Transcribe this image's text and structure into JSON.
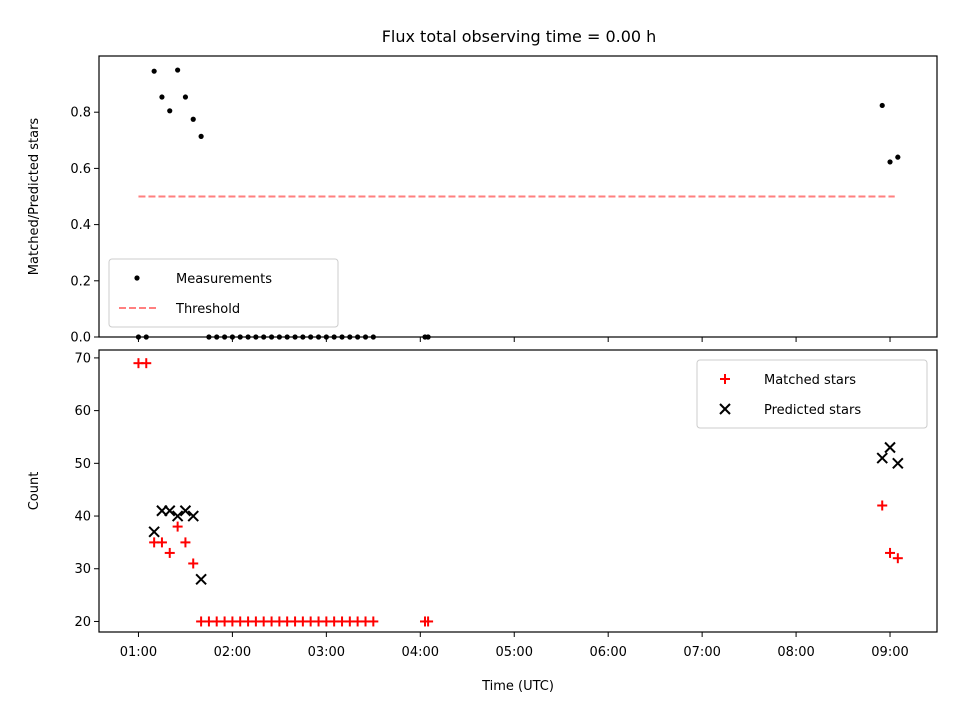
{
  "chart_data": [
    {
      "type": "scatter",
      "title": "Flux total observing time = 0.00 h",
      "xlabel": "",
      "ylabel": "Matched/Predicted stars",
      "xlim": [
        0.58,
        9.5
      ],
      "ylim": [
        0.0,
        1.0
      ],
      "yticks": [
        0.0,
        0.2,
        0.4,
        0.6,
        0.8
      ],
      "ytick_labels": [
        "0.0",
        "0.2",
        "0.4",
        "0.6",
        "0.8"
      ],
      "grid": false,
      "legend_position": "lower-left",
      "series": [
        {
          "name": "Measurements",
          "marker": "dot",
          "color": "#000000",
          "x": [
            1.0,
            1.083,
            1.167,
            1.25,
            1.333,
            1.417,
            1.5,
            1.583,
            1.667,
            1.75,
            1.833,
            1.917,
            2.0,
            2.083,
            2.167,
            2.25,
            2.333,
            2.417,
            2.5,
            2.583,
            2.667,
            2.75,
            2.833,
            2.917,
            3.0,
            3.083,
            3.167,
            3.25,
            3.333,
            3.417,
            3.5,
            4.05,
            4.083,
            8.917,
            9.0,
            9.083
          ],
          "y": [
            0.0,
            0.0,
            0.946,
            0.854,
            0.805,
            0.95,
            0.854,
            0.775,
            0.714,
            0.0,
            0.0,
            0.0,
            0.0,
            0.0,
            0.0,
            0.0,
            0.0,
            0.0,
            0.0,
            0.0,
            0.0,
            0.0,
            0.0,
            0.0,
            0.0,
            0.0,
            0.0,
            0.0,
            0.0,
            0.0,
            0.0,
            0.0,
            0.0,
            0.824,
            0.623,
            0.64
          ]
        },
        {
          "name": "Threshold",
          "marker": "dashed-line",
          "color": "#ff7f7f",
          "x": [
            1.0,
            9.05
          ],
          "y": [
            0.5,
            0.5
          ]
        }
      ]
    },
    {
      "type": "scatter",
      "title": "",
      "xlabel": "Time (UTC)",
      "ylabel": "Count",
      "xlim": [
        0.58,
        9.5
      ],
      "ylim": [
        18,
        71.5
      ],
      "yticks": [
        20,
        30,
        40,
        50,
        60,
        70
      ],
      "ytick_labels": [
        "20",
        "30",
        "40",
        "50",
        "60",
        "70"
      ],
      "xticks": [
        1,
        2,
        3,
        4,
        5,
        6,
        7,
        8,
        9
      ],
      "xtick_labels": [
        "01:00",
        "02:00",
        "03:00",
        "04:00",
        "05:00",
        "06:00",
        "07:00",
        "08:00",
        "09:00"
      ],
      "grid": false,
      "legend_position": "upper-right",
      "series": [
        {
          "name": "Matched stars",
          "marker": "plus",
          "color": "#ff0000",
          "x": [
            1.0,
            1.083,
            1.167,
            1.25,
            1.333,
            1.417,
            1.5,
            1.583,
            1.667,
            1.75,
            1.833,
            1.917,
            2.0,
            2.083,
            2.167,
            2.25,
            2.333,
            2.417,
            2.5,
            2.583,
            2.667,
            2.75,
            2.833,
            2.917,
            3.0,
            3.083,
            3.167,
            3.25,
            3.333,
            3.417,
            3.5,
            4.05,
            4.083,
            8.917,
            9.0,
            9.083
          ],
          "y": [
            69,
            69,
            35,
            35,
            33,
            38,
            35,
            31,
            20,
            20,
            20,
            20,
            20,
            20,
            20,
            20,
            20,
            20,
            20,
            20,
            20,
            20,
            20,
            20,
            20,
            20,
            20,
            20,
            20,
            20,
            20,
            20,
            20,
            42,
            33,
            32
          ]
        },
        {
          "name": "Predicted stars",
          "marker": "x",
          "color": "#000000",
          "x": [
            1.167,
            1.25,
            1.333,
            1.417,
            1.5,
            1.583,
            1.667,
            8.917,
            9.0,
            9.083
          ],
          "y": [
            37,
            41,
            41,
            40,
            41,
            40,
            28,
            51,
            53,
            50
          ]
        }
      ]
    }
  ]
}
